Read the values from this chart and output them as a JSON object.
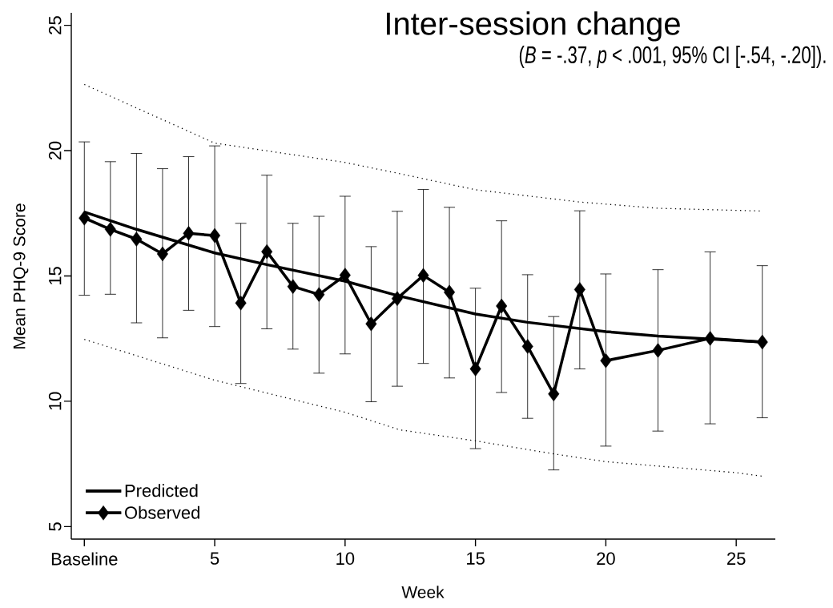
{
  "chart_data": {
    "type": "line",
    "title": "Inter-session change",
    "subtitle": "(*B* = -.37, *p* < .001, 95% CI [-.54, -.20]).",
    "xlabel": "Week",
    "ylabel": "Mean PHQ-9 Score",
    "xlim": [
      -0.5,
      26.5
    ],
    "ylim": [
      4.5,
      25.5
    ],
    "xticks": [
      {
        "value": 0,
        "label": "Baseline"
      },
      5,
      10,
      15,
      20,
      25
    ],
    "yticks": [
      5,
      10,
      15,
      20,
      25
    ],
    "legend": "bottom left",
    "series": [
      {
        "name": "Predicted",
        "color": "#000000",
        "marker": "none",
        "line_style": "solid",
        "x": [
          0,
          2,
          5,
          7,
          10,
          12,
          15,
          17,
          20,
          22,
          24,
          26
        ],
        "values": [
          17.55,
          16.86,
          15.92,
          15.45,
          14.79,
          14.22,
          13.48,
          13.15,
          12.78,
          12.6,
          12.48,
          12.36
        ]
      },
      {
        "name": "Observed",
        "color": "#000000",
        "marker": "diamond",
        "line_style": "solid",
        "x": [
          0,
          1,
          2,
          3,
          4,
          5,
          6,
          7,
          8,
          9,
          10,
          11,
          12,
          13,
          14,
          15,
          16,
          17,
          18,
          19,
          20,
          22,
          24,
          26
        ],
        "values": [
          17.31,
          16.86,
          16.47,
          15.88,
          16.7,
          16.61,
          13.92,
          15.97,
          14.58,
          14.26,
          15.03,
          13.09,
          14.1,
          15.02,
          14.35,
          11.29,
          13.8,
          12.19,
          10.29,
          14.46,
          11.62,
          12.03,
          12.51,
          12.36
        ],
        "errors": [
          [
            14.23,
            20.35
          ],
          [
            14.27,
            19.56
          ],
          [
            13.13,
            19.89
          ],
          [
            12.53,
            19.28
          ],
          [
            13.63,
            19.76
          ],
          [
            12.98,
            20.19
          ],
          [
            10.71,
            17.1
          ],
          [
            12.89,
            19.02
          ],
          [
            12.08,
            17.1
          ],
          [
            11.12,
            17.38
          ],
          [
            11.89,
            18.18
          ],
          [
            9.98,
            16.17
          ],
          [
            10.6,
            17.58
          ],
          [
            11.51,
            18.45
          ],
          [
            10.93,
            17.74
          ],
          [
            8.11,
            14.51
          ],
          [
            10.35,
            17.2
          ],
          [
            9.32,
            15.05
          ],
          [
            7.26,
            13.38
          ],
          [
            11.29,
            17.6
          ],
          [
            8.21,
            15.08
          ],
          [
            8.81,
            15.25
          ],
          [
            9.1,
            15.96
          ],
          [
            9.34,
            15.41
          ]
        ]
      },
      {
        "color": "#000000",
        "marker": "none",
        "line_style": "dotted",
        "x": [
          0,
          5,
          10,
          12.1,
          15,
          19,
          22,
          26
        ],
        "values": [
          22.64,
          20.3,
          19.53,
          19.08,
          18.44,
          17.95,
          17.7,
          17.59
        ]
      },
      {
        "color": "#000000",
        "marker": "none",
        "line_style": "dotted",
        "x": [
          0,
          5,
          10,
          12.1,
          15,
          18,
          20,
          25,
          26
        ],
        "values": [
          12.47,
          10.84,
          9.56,
          8.86,
          8.42,
          7.9,
          7.59,
          7.15,
          7.01
        ]
      }
    ]
  }
}
